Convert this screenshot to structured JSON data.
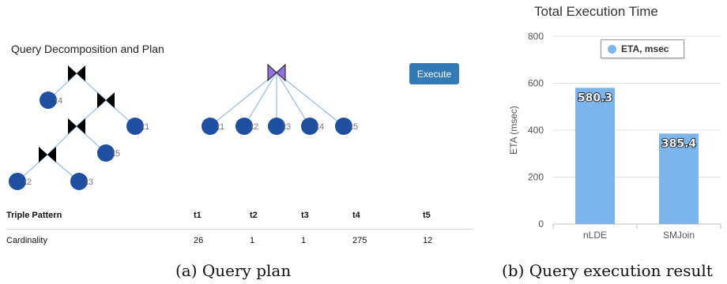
{
  "left_panel": {
    "title": "Query Decomposition and Plan",
    "execute_label": "Execute",
    "tree_nodes": [
      "t4",
      "t1",
      "t5",
      "t2",
      "t3"
    ],
    "star_nodes": [
      "t1",
      "t2",
      "t3",
      "t4",
      "t5"
    ],
    "table": {
      "header_label": "Triple Pattern",
      "columns": [
        "t1",
        "t2",
        "t3",
        "t4",
        "t5"
      ],
      "row_label": "Cardinality",
      "values": [
        "26",
        "1",
        "1",
        "275",
        "12"
      ]
    },
    "caption": "(a) Query plan"
  },
  "right_panel": {
    "caption": "(b) Query execution result"
  },
  "colors": {
    "node": "#1f4fa0",
    "join_tree": "#000000",
    "join_star": "#9370db",
    "edge": "#a8c4e6",
    "button": "#337ab7",
    "bar": "#7cb5ec"
  },
  "chart_data": {
    "type": "bar",
    "title": "Total Execution Time",
    "categories": [
      "nLDE",
      "SMJoin"
    ],
    "series": [
      {
        "name": "ETA, msec",
        "values": [
          580.3,
          385.4
        ]
      }
    ],
    "data_labels": [
      "580.3",
      "385.4"
    ],
    "ylabel": "ETA (msec)",
    "ylim": [
      0,
      800
    ],
    "yticks": [
      "0",
      "200",
      "400",
      "600",
      "800"
    ],
    "grid": true,
    "legend": "top"
  }
}
